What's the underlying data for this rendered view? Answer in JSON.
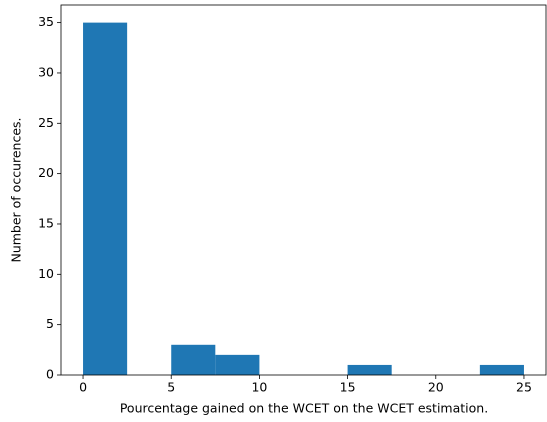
{
  "chart_data": {
    "type": "histogram",
    "xlabel": "Pourcentage gained on the WCET on the WCET estimation.",
    "ylabel": "Number of occurences.",
    "bins": [
      0,
      2.5,
      5,
      7.5,
      10,
      12.5,
      15,
      17.5,
      20,
      22.5,
      25
    ],
    "counts": [
      35,
      0,
      3,
      2,
      0,
      0,
      1,
      0,
      0,
      1
    ],
    "color": "#1f77b4",
    "xlim": [
      -1.25,
      26.25
    ],
    "xticks": [
      0,
      5,
      10,
      15,
      20,
      25
    ],
    "ylim": [
      0,
      36.75
    ],
    "yticks": [
      0,
      5,
      10,
      15,
      20,
      25,
      30,
      35
    ]
  }
}
